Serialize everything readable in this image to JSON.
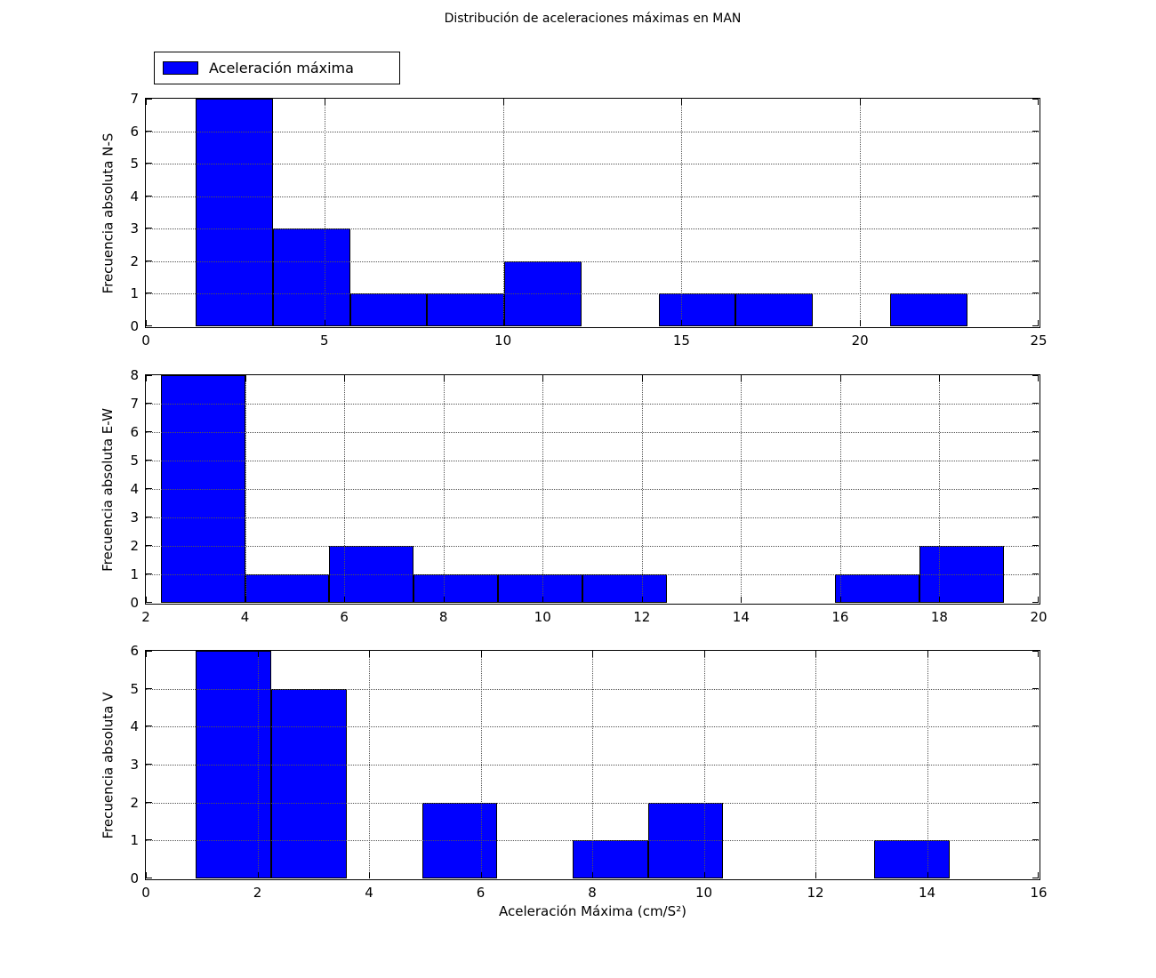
{
  "title": "Distribución de aceleraciones máximas en MAN",
  "legend": {
    "label": "Aceleración máxima",
    "swatch_color": "#0000ff"
  },
  "xlabel": "Aceleración Máxima (cm/S²)",
  "colors": {
    "bar_fill": "#0000ff",
    "bar_edge": "#000000",
    "grid": "#555555",
    "axes_edge": "#000000"
  },
  "chart_data": [
    {
      "type": "bar",
      "subtype": "histogram",
      "series_name": "Aceleración máxima",
      "ylabel": "Frecuencia absoluta N-S",
      "xlim": [
        0,
        25
      ],
      "ylim": [
        0,
        7
      ],
      "xticks": [
        0,
        5,
        10,
        15,
        20,
        25
      ],
      "yticks": [
        0,
        1,
        2,
        3,
        4,
        5,
        6,
        7
      ],
      "bin_edges": [
        1.4,
        3.56,
        5.72,
        7.88,
        10.04,
        12.2,
        14.36,
        16.52,
        18.68,
        20.84,
        23.0
      ],
      "counts": [
        7,
        3,
        1,
        1,
        2,
        0,
        1,
        1,
        0,
        1
      ],
      "grid": "dotted"
    },
    {
      "type": "bar",
      "subtype": "histogram",
      "series_name": "Aceleración máxima",
      "ylabel": "Frecuencia absoluta E-W",
      "xlim": [
        2,
        20
      ],
      "ylim": [
        0,
        8
      ],
      "xticks": [
        2,
        4,
        6,
        8,
        10,
        12,
        14,
        16,
        18,
        20
      ],
      "yticks": [
        0,
        1,
        2,
        3,
        4,
        5,
        6,
        7,
        8
      ],
      "bin_edges": [
        2.3,
        4.0,
        5.7,
        7.4,
        9.1,
        10.8,
        12.5,
        14.2,
        15.9,
        17.6,
        19.3
      ],
      "counts": [
        8,
        1,
        2,
        1,
        1,
        1,
        0,
        0,
        1,
        2
      ],
      "grid": "dotted"
    },
    {
      "type": "bar",
      "subtype": "histogram",
      "series_name": "Aceleración máxima",
      "ylabel": "Frecuencia absoluta V",
      "xlim": [
        0,
        16
      ],
      "ylim": [
        0,
        6
      ],
      "xticks": [
        0,
        2,
        4,
        6,
        8,
        10,
        12,
        14,
        16
      ],
      "yticks": [
        0,
        1,
        2,
        3,
        4,
        5,
        6
      ],
      "bin_edges": [
        0.9,
        2.25,
        3.6,
        4.95,
        6.3,
        7.65,
        9.0,
        10.35,
        11.7,
        13.05,
        14.4
      ],
      "counts": [
        6,
        5,
        0,
        2,
        0,
        1,
        2,
        0,
        0,
        1
      ],
      "grid": "dotted"
    }
  ]
}
